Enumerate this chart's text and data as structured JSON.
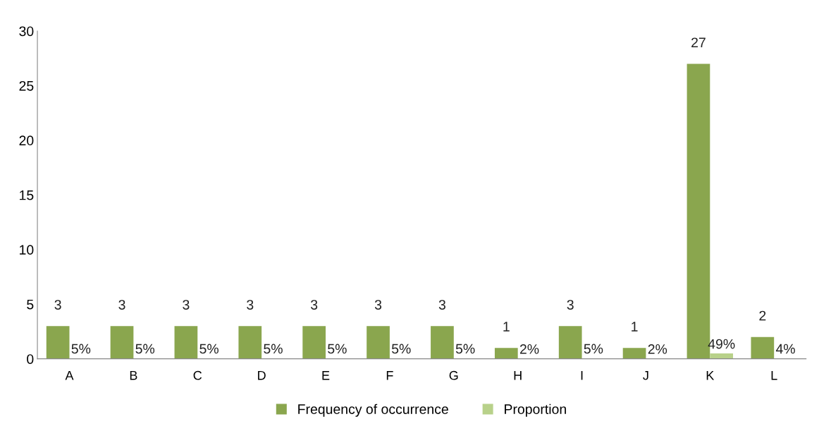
{
  "chart_data": {
    "type": "bar",
    "categories": [
      "A",
      "B",
      "C",
      "D",
      "E",
      "F",
      "G",
      "H",
      "I",
      "J",
      "K",
      "L"
    ],
    "series": [
      {
        "name": "Frequency of occurrence",
        "color": "#8aa64e",
        "values": [
          3,
          3,
          3,
          3,
          3,
          3,
          3,
          1,
          3,
          1,
          27,
          2
        ],
        "value_labels": [
          "3",
          "3",
          "3",
          "3",
          "3",
          "3",
          "3",
          "1",
          "3",
          "1",
          "27",
          "2"
        ]
      },
      {
        "name": "Proportion",
        "color": "#b8d18a",
        "values": [
          0.05,
          0.05,
          0.05,
          0.05,
          0.05,
          0.05,
          0.05,
          0.02,
          0.05,
          0.02,
          0.49,
          0.04
        ],
        "value_labels": [
          "5%",
          "5%",
          "5%",
          "5%",
          "5%",
          "5%",
          "5%",
          "2%",
          "5%",
          "2%",
          "49%",
          "4%"
        ]
      }
    ],
    "ylim": [
      0,
      30
    ],
    "yticks": [
      0,
      5,
      10,
      15,
      20,
      25,
      30
    ],
    "grid": false,
    "legend": "bottom"
  }
}
